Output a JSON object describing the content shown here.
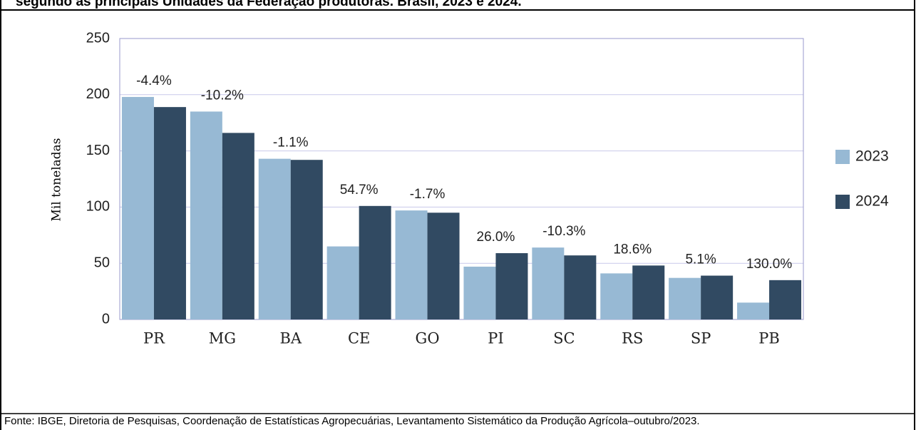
{
  "title": "segundo as principais Unidades da Federação produtoras. Brasil, 2023 e 2024.",
  "chart_data": {
    "type": "bar",
    "ylabel": "Mil toneladas",
    "categories": [
      "PR",
      "MG",
      "BA",
      "CE",
      "GO",
      "PI",
      "SC",
      "RS",
      "SP",
      "PB"
    ],
    "series": [
      {
        "name": "2023",
        "color": "#97b9d4",
        "values": [
          198,
          185,
          143,
          65,
          97,
          47,
          64,
          41,
          37,
          15
        ]
      },
      {
        "name": "2024",
        "color": "#314a62",
        "values": [
          189,
          166,
          142,
          101,
          95,
          59,
          57,
          48,
          39,
          35
        ]
      }
    ],
    "annotations": [
      "-4.4%",
      "-10.2%",
      "-1.1%",
      "54.7%",
      "-1.7%",
      "26.0%",
      "-10.3%",
      "18.6%",
      "5.1%",
      "130.0%"
    ],
    "ylim": [
      0,
      250
    ],
    "yticks": [
      0,
      50,
      100,
      150,
      200,
      250
    ],
    "grid": true,
    "legend": "right"
  },
  "footer": "Fonte: IBGE, Diretoria de Pesquisas, Coordenação de Estatísticas Agropecuárias, Levantamento Sistemático da Produção Agrícola–outubro/2023."
}
